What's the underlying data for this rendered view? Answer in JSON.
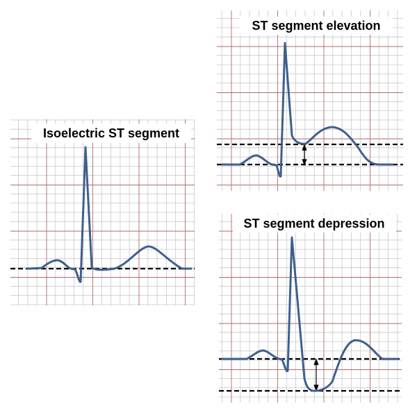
{
  "panels": [
    {
      "title": "Isoelectric ST segment"
    },
    {
      "title": "ST segment elevation"
    },
    {
      "title": "ST segment depression"
    }
  ]
}
